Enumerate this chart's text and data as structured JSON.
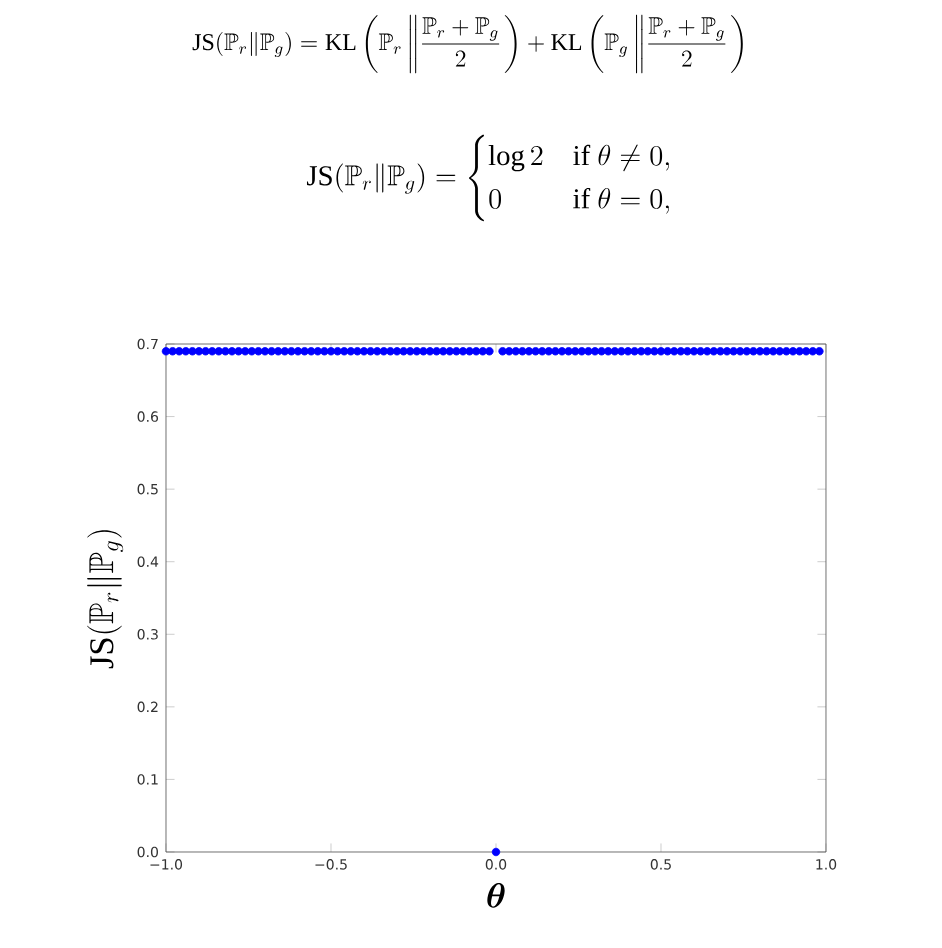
{
  "chart_data": {
    "type": "scatter",
    "title": "\\mathrm{JS}(\\mathbb{P}_r\\|\\mathbb{P}_g) = \\mathrm{KL}\\left(\\mathbb{P}_r \\left\\| \\frac{\\mathbb{P}_r+\\mathbb{P}_g}{2}\\right.\\right) + \\mathrm{KL}\\left(\\mathbb{P}_g \\left\\| \\frac{\\mathbb{P}_r+\\mathbb{P}_g}{2}\\right.\\right)",
    "subtitle": "\\mathrm{JS}(\\mathbb{P}_r\\|\\mathbb{P}_g) = \\begin{cases} \\log 2 & \\text{if } \\theta \\neq 0,\\\\ 0 & \\text{if } \\theta = 0,\\end{cases}",
    "xlabel": "\\boldsymbol{\\theta}",
    "ylabel": "\\mathrm{JS}(\\mathbb{P}_r\\|\\mathbb{P}_g)",
    "x": [
      -1.0,
      -0.98,
      -0.96,
      -0.94,
      -0.92,
      -0.9,
      -0.88,
      -0.86,
      -0.84,
      -0.82,
      -0.8,
      -0.78,
      -0.76,
      -0.74,
      -0.72,
      -0.7,
      -0.68,
      -0.66,
      -0.64,
      -0.62,
      -0.6,
      -0.58,
      -0.56,
      -0.54,
      -0.52,
      -0.5,
      -0.48,
      -0.46,
      -0.44,
      -0.42,
      -0.4,
      -0.38,
      -0.36,
      -0.34,
      -0.32,
      -0.3,
      -0.28,
      -0.26,
      -0.24,
      -0.22,
      -0.2,
      -0.18,
      -0.16,
      -0.14,
      -0.12,
      -0.1,
      -0.08,
      -0.06,
      -0.04,
      -0.02,
      0.0,
      0.02,
      0.04,
      0.06,
      0.08,
      0.1,
      0.12,
      0.14,
      0.16,
      0.18,
      0.2,
      0.22,
      0.24,
      0.26,
      0.28,
      0.3,
      0.32,
      0.34,
      0.36,
      0.38,
      0.4,
      0.42,
      0.44,
      0.46,
      0.48,
      0.5,
      0.52,
      0.54,
      0.56,
      0.58,
      0.6,
      0.62,
      0.64,
      0.66,
      0.68,
      0.7,
      0.72,
      0.74,
      0.76,
      0.78,
      0.8,
      0.82,
      0.84,
      0.86,
      0.88,
      0.9,
      0.92,
      0.94,
      0.96,
      0.98
    ],
    "values": [
      0.69,
      0.69,
      0.69,
      0.69,
      0.69,
      0.69,
      0.69,
      0.69,
      0.69,
      0.69,
      0.69,
      0.69,
      0.69,
      0.69,
      0.69,
      0.69,
      0.69,
      0.69,
      0.69,
      0.69,
      0.69,
      0.69,
      0.69,
      0.69,
      0.69,
      0.69,
      0.69,
      0.69,
      0.69,
      0.69,
      0.69,
      0.69,
      0.69,
      0.69,
      0.69,
      0.69,
      0.69,
      0.69,
      0.69,
      0.69,
      0.69,
      0.69,
      0.69,
      0.69,
      0.69,
      0.69,
      0.69,
      0.69,
      0.69,
      0.69,
      0.0,
      0.69,
      0.69,
      0.69,
      0.69,
      0.69,
      0.69,
      0.69,
      0.69,
      0.69,
      0.69,
      0.69,
      0.69,
      0.69,
      0.69,
      0.69,
      0.69,
      0.69,
      0.69,
      0.69,
      0.69,
      0.69,
      0.69,
      0.69,
      0.69,
      0.69,
      0.69,
      0.69,
      0.69,
      0.69,
      0.69,
      0.69,
      0.69,
      0.69,
      0.69,
      0.69,
      0.69,
      0.69,
      0.69,
      0.69,
      0.69,
      0.69,
      0.69,
      0.69,
      0.69,
      0.69,
      0.69,
      0.69,
      0.69,
      0.69
    ],
    "color": "#0000ff",
    "marker": "circle",
    "xlim": [
      -1.0,
      1.0
    ],
    "ylim": [
      0.0,
      0.7
    ],
    "xticks": [
      {
        "value": -1.0,
        "label": "−1.0"
      },
      {
        "value": -0.5,
        "label": "−0.5"
      },
      {
        "value": 0.0,
        "label": "0.0"
      },
      {
        "value": 0.5,
        "label": "0.5"
      },
      {
        "value": 1.0,
        "label": "1.0"
      }
    ],
    "yticks": [
      {
        "value": 0.0,
        "label": "0.0"
      },
      {
        "value": 0.1,
        "label": "0.1"
      },
      {
        "value": 0.2,
        "label": "0.2"
      },
      {
        "value": 0.3,
        "label": "0.3"
      },
      {
        "value": 0.4,
        "label": "0.4"
      },
      {
        "value": 0.5,
        "label": "0.5"
      },
      {
        "value": 0.6,
        "label": "0.6"
      },
      {
        "value": 0.7,
        "label": "0.7"
      }
    ]
  }
}
